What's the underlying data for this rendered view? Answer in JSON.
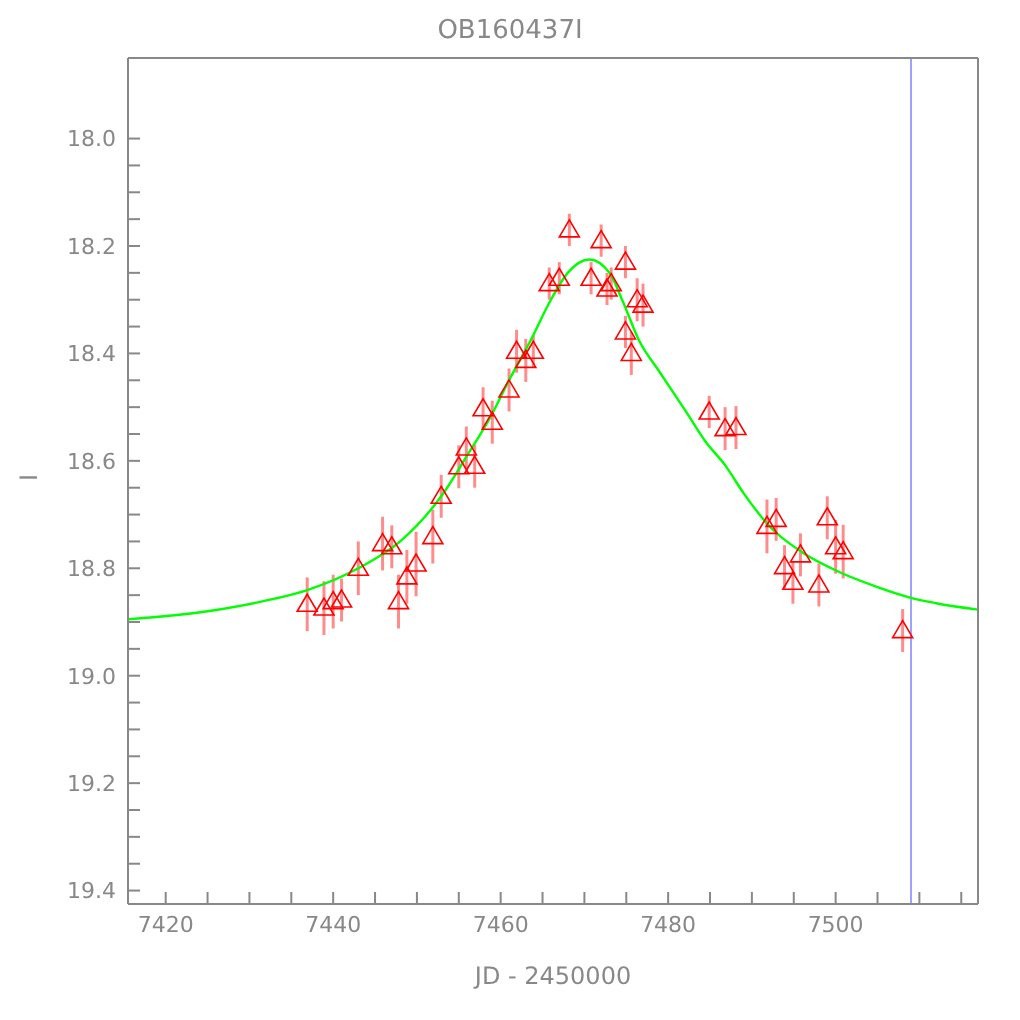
{
  "chart_data": {
    "type": "scatter",
    "title": "OB160437I",
    "xlabel": "JD - 2450000",
    "ylabel": "I",
    "xlim": [
      7415.5,
      7517
    ],
    "ylim": [
      19.425,
      17.85
    ],
    "xticks": [
      {
        "value": 7420,
        "label": "7420"
      },
      {
        "value": 7425,
        "label": null
      },
      {
        "value": 7430,
        "label": null
      },
      {
        "value": 7435,
        "label": null
      },
      {
        "value": 7440,
        "label": "7440"
      },
      {
        "value": 7445,
        "label": null
      },
      {
        "value": 7450,
        "label": null
      },
      {
        "value": 7455,
        "label": null
      },
      {
        "value": 7460,
        "label": "7460"
      },
      {
        "value": 7465,
        "label": null
      },
      {
        "value": 7470,
        "label": null
      },
      {
        "value": 7475,
        "label": null
      },
      {
        "value": 7480,
        "label": "7480"
      },
      {
        "value": 7485,
        "label": null
      },
      {
        "value": 7490,
        "label": null
      },
      {
        "value": 7495,
        "label": null
      },
      {
        "value": 7500,
        "label": "7500"
      },
      {
        "value": 7505,
        "label": null
      },
      {
        "value": 7510,
        "label": null
      },
      {
        "value": 7515,
        "label": null
      }
    ],
    "yticks": [
      {
        "value": 18.0,
        "label": "18.0"
      },
      {
        "value": 18.05,
        "label": null
      },
      {
        "value": 18.1,
        "label": null
      },
      {
        "value": 18.15,
        "label": null
      },
      {
        "value": 18.2,
        "label": "18.2"
      },
      {
        "value": 18.25,
        "label": null
      },
      {
        "value": 18.3,
        "label": null
      },
      {
        "value": 18.35,
        "label": null
      },
      {
        "value": 18.4,
        "label": "18.4"
      },
      {
        "value": 18.45,
        "label": null
      },
      {
        "value": 18.5,
        "label": null
      },
      {
        "value": 18.55,
        "label": null
      },
      {
        "value": 18.6,
        "label": "18.6"
      },
      {
        "value": 18.65,
        "label": null
      },
      {
        "value": 18.7,
        "label": null
      },
      {
        "value": 18.75,
        "label": null
      },
      {
        "value": 18.8,
        "label": "18.8"
      },
      {
        "value": 18.85,
        "label": null
      },
      {
        "value": 18.9,
        "label": null
      },
      {
        "value": 18.95,
        "label": null
      },
      {
        "value": 19.0,
        "label": "19.0"
      },
      {
        "value": 19.05,
        "label": null
      },
      {
        "value": 19.1,
        "label": null
      },
      {
        "value": 19.15,
        "label": null
      },
      {
        "value": 19.2,
        "label": "19.2"
      },
      {
        "value": 19.25,
        "label": null
      },
      {
        "value": 19.3,
        "label": null
      },
      {
        "value": 19.35,
        "label": null
      },
      {
        "value": 19.4,
        "label": "19.4"
      }
    ],
    "legend": false,
    "ref_lines": [
      {
        "axis": "x",
        "value": 7509,
        "color": "#a0a0ff"
      }
    ],
    "series": [
      {
        "color": "#ff0000",
        "marker": "triangle",
        "x": [
          7436.9,
          7438.9,
          7440.0,
          7441.0,
          7443.0,
          7445.9,
          7447.0,
          7447.8,
          7448.8,
          7449.9,
          7451.9,
          7452.9,
          7455.0,
          7455.9,
          7456.9,
          7457.9,
          7459.0,
          7461.0,
          7461.9,
          7463.0,
          7463.9,
          7465.8,
          7467.0,
          7468.2,
          7470.8,
          7472.0,
          7472.7,
          7473.2,
          7474.9,
          7474.9,
          7475.6,
          7476.3,
          7477.0,
          7484.9,
          7486.8,
          7488.1,
          7491.8,
          7492.9,
          7493.9,
          7494.9,
          7495.8,
          7498.0,
          7499.0,
          7500.0,
          7500.9,
          7508.0
        ],
        "values": [
          18.867,
          18.874,
          18.862,
          18.859,
          18.8,
          18.754,
          18.76,
          18.862,
          18.816,
          18.792,
          18.741,
          18.666,
          18.611,
          18.576,
          18.61,
          18.503,
          18.528,
          18.468,
          18.396,
          18.413,
          18.396,
          18.27,
          18.26,
          18.17,
          18.26,
          18.19,
          18.28,
          18.27,
          18.23,
          18.36,
          18.4,
          18.3,
          18.31,
          18.509,
          18.54,
          18.538,
          18.722,
          18.709,
          18.797,
          18.826,
          18.775,
          18.831,
          18.706,
          18.76,
          18.769,
          18.916
        ],
        "errors": [
          0.05,
          0.05,
          0.05,
          0.04,
          0.05,
          0.05,
          0.04,
          0.05,
          0.05,
          0.06,
          0.05,
          0.04,
          0.04,
          0.04,
          0.04,
          0.04,
          0.04,
          0.04,
          0.04,
          0.04,
          0.03,
          0.03,
          0.03,
          0.03,
          0.03,
          0.03,
          0.03,
          0.03,
          0.03,
          0.03,
          0.04,
          0.04,
          0.04,
          0.03,
          0.04,
          0.04,
          0.05,
          0.04,
          0.04,
          0.04,
          0.04,
          0.04,
          0.04,
          0.05,
          0.05,
          0.04
        ]
      },
      {
        "type": "line",
        "color": "#00ff00",
        "marker": "none",
        "x": [
          7415.5,
          7425,
          7431.4,
          7437,
          7443,
          7448,
          7452.9,
          7456,
          7458.9,
          7461,
          7463.6,
          7466,
          7468,
          7470.6,
          7473,
          7474.5,
          7476.5,
          7479,
          7482,
          7484.5,
          7486.8,
          7489,
          7492.3,
          7496,
          7500.3,
          7505,
          7509,
          7512,
          7517
        ],
        "values": [
          18.895,
          18.88,
          18.862,
          18.84,
          18.8,
          18.75,
          18.666,
          18.59,
          18.515,
          18.45,
          18.375,
          18.3,
          18.25,
          18.225,
          18.25,
          18.3,
          18.375,
          18.435,
          18.505,
          18.565,
          18.608,
          18.66,
          18.725,
          18.77,
          18.806,
          18.835,
          18.855,
          18.865,
          18.877
        ]
      }
    ]
  }
}
